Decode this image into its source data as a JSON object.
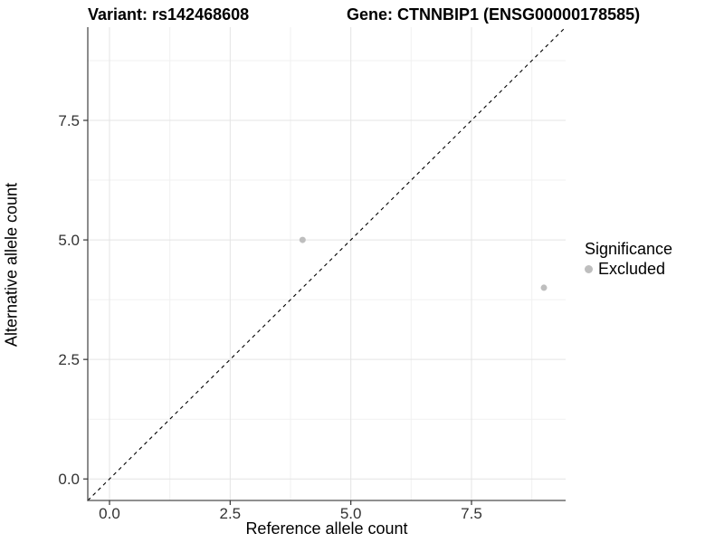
{
  "title": {
    "left": "Variant: rs142468608",
    "right": "Gene: CTNNBIP1 (ENSG00000178585)"
  },
  "chart_data": {
    "type": "scatter",
    "title": "Variant: rs142468608   Gene: CTNNBIP1 (ENSG00000178585)",
    "xlabel": "Reference allele count",
    "ylabel": "Alternative allele count",
    "xlim": [
      -0.45,
      9.45
    ],
    "ylim": [
      -0.45,
      9.45
    ],
    "x_ticks": [
      0,
      2.5,
      5,
      7.5
    ],
    "x_tick_labels": [
      "0.0",
      "2.5",
      "5.0",
      "7.5"
    ],
    "y_ticks": [
      0,
      2.5,
      5,
      7.5
    ],
    "y_tick_labels": [
      "0.0",
      "2.5",
      "5.0",
      "7.5"
    ],
    "minor_ticks": [
      1.25,
      3.75,
      6.25,
      8.75
    ],
    "grid": true,
    "points": [
      {
        "x": 4,
        "y": 5,
        "series": "Excluded"
      },
      {
        "x": 9,
        "y": 4,
        "series": "Excluded"
      }
    ],
    "identity_line": {
      "slope": 1,
      "intercept": 0,
      "style": "dashed",
      "color": "#000000"
    },
    "legend": {
      "title": "Significance",
      "position": "right",
      "items": [
        {
          "label": "Excluded",
          "color": "#bebebe"
        }
      ]
    },
    "colors": {
      "point": "#bebebe",
      "grid_major": "#e4e4e4",
      "grid_minor": "#f1f1f1",
      "axis_line": "#4d4d4d",
      "tick_mark": "#333333",
      "tick_text": "#333333"
    }
  }
}
